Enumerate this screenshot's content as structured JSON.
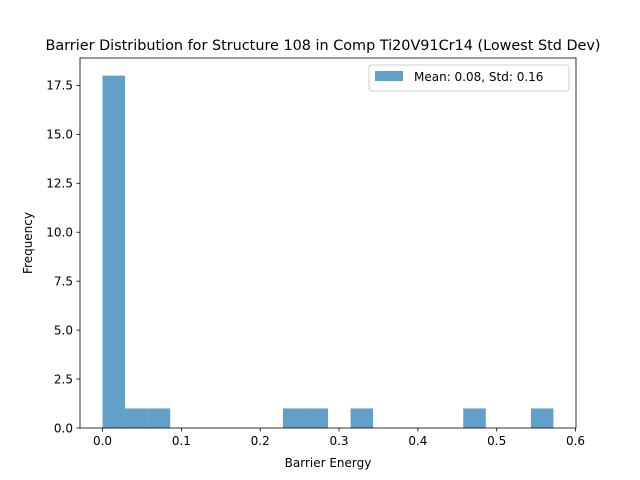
{
  "chart_data": {
    "type": "bar",
    "title": "Barrier Distribution for Structure 108 in Comp Ti20V91Cr14 (Lowest Std Dev)",
    "xlabel": "Barrier Energy",
    "ylabel": "Frequency",
    "xlim": [
      -0.0286,
      0.6006
    ],
    "ylim": [
      0,
      18.9
    ],
    "xticks": [
      0.0,
      0.1,
      0.2,
      0.3,
      0.4,
      0.5,
      0.6
    ],
    "xtick_labels": [
      "0.0",
      "0.1",
      "0.2",
      "0.3",
      "0.4",
      "0.5",
      "0.6"
    ],
    "yticks": [
      0.0,
      2.5,
      5.0,
      7.5,
      10.0,
      12.5,
      15.0,
      17.5
    ],
    "ytick_labels": [
      "0.0",
      "2.5",
      "5.0",
      "7.5",
      "10.0",
      "12.5",
      "15.0",
      "17.5"
    ],
    "bin_start": 0.0,
    "bin_width": 0.0286,
    "counts": [
      18,
      1,
      1,
      0,
      0,
      0,
      0,
      0,
      1,
      1,
      0,
      1,
      0,
      0,
      0,
      0,
      1,
      0,
      0,
      1
    ],
    "series": [
      {
        "name": "Mean: 0.08, Std: 0.16"
      }
    ],
    "bar_color": "#1f77b4",
    "bar_alpha": 0.7,
    "legend_position": "top-right",
    "grid": false
  }
}
